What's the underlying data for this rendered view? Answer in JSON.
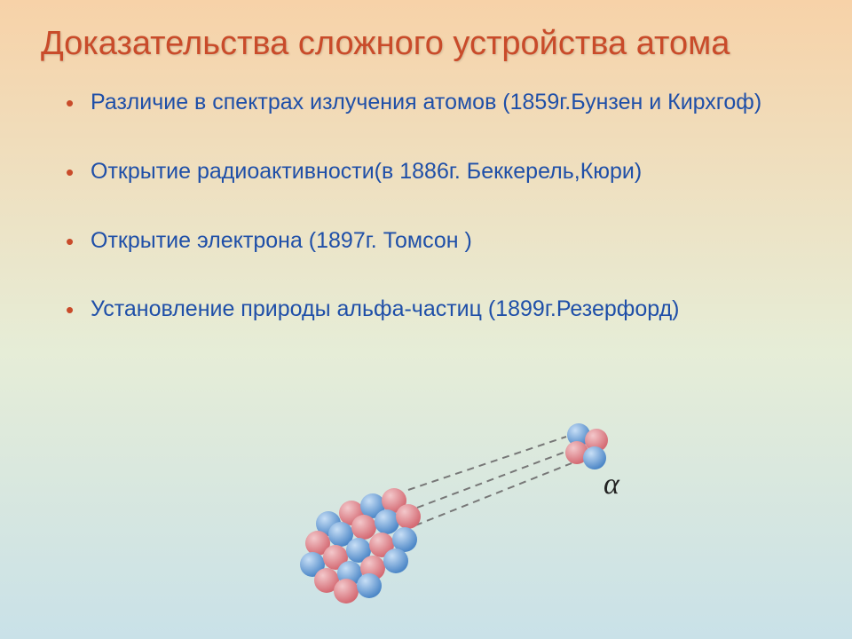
{
  "background": {
    "top_color": "#f7d2a8",
    "mid_color": "#e6edd7",
    "bottom_color": "#c9e1e8"
  },
  "title": "Доказательства сложного устройства атома",
  "title_color": "#C94B2A",
  "title_fontsize": 38,
  "bullet_color": "#C94B2A",
  "text_color": "#1F4FA8",
  "text_fontsize": 25,
  "items": [
    "Различие в спектрах излучения атомов (1859г.Бунзен и Кирхгоф)",
    "Открытие радиоактивности(в 1886г. Беккерель,Кюри)",
    "Открытие электрона (1897г. Томсон )",
    "Установление природы альфа-частиц (1899г.Резерфорд)"
  ],
  "diagram": {
    "label": "α",
    "label_fontsize": 34,
    "sphere_colors": {
      "red_light": "#f3c8cb",
      "red_dark": "#d46a73",
      "blue_light": "#c8dff6",
      "blue_dark": "#4d87c7"
    },
    "line_color": "#777777",
    "line_dash": "8 6"
  }
}
